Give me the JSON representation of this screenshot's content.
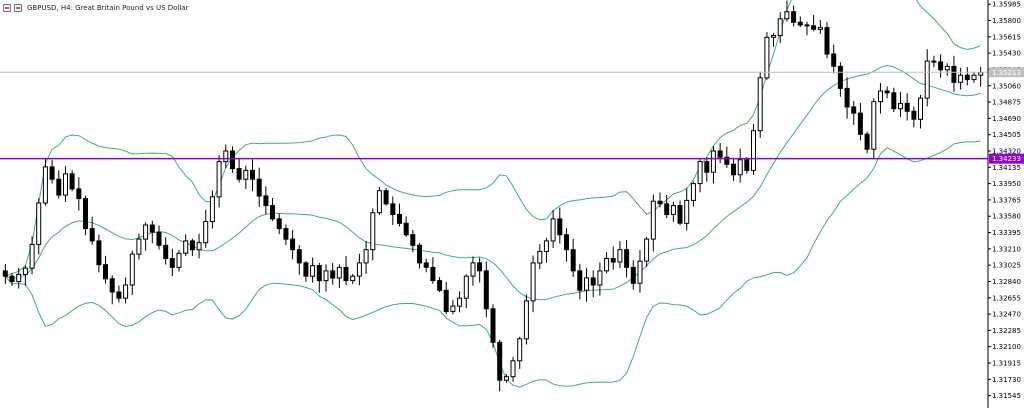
{
  "header": {
    "symbol": "GBPUSD",
    "timeframe": "H4",
    "description": "Great Britain Pound vs US Dollar",
    "title": "GBPUSD, H4:  Great Britain Pound vs US Dollar",
    "icons": [
      "window-icon",
      "window-icon"
    ]
  },
  "colors": {
    "background": "#ffffff",
    "candle": "#000000",
    "bollinger": "#3cb371",
    "level_line": "#9400d3",
    "level_label_bg": "#9400d3",
    "level_label_text": "#ffffff",
    "bid_line": "#c0c0c0",
    "bid_label_bg": "#c0c0c0",
    "axis": "#000000"
  },
  "chart_data": {
    "type": "candlestick",
    "symbol": "GBPUSD",
    "timeframe": "H4",
    "y_range": [
      1.3145,
      1.3601
    ],
    "y_ticks": [
      "1.35985",
      "1.35800",
      "1.35615",
      "1.35430",
      "1.35245",
      "1.35060",
      "1.34875",
      "1.34690",
      "1.34505",
      "1.34320",
      "1.34135",
      "1.33950",
      "1.33765",
      "1.33580",
      "1.33395",
      "1.33210",
      "1.33025",
      "1.32840",
      "1.32655",
      "1.32470",
      "1.32285",
      "1.32100",
      "1.31915",
      "1.31730",
      "1.31545"
    ],
    "horizontal_level": {
      "value": 1.34233,
      "label": "1.34233"
    },
    "current_price": {
      "value": 1.35213,
      "label": "1.35213"
    },
    "indicator": "Bollinger Bands",
    "closes": [
      1.329,
      1.3284,
      1.3292,
      1.3299,
      1.3326,
      1.3373,
      1.3414,
      1.34,
      1.3382,
      1.3406,
      1.3389,
      1.3378,
      1.3344,
      1.333,
      1.3303,
      1.3287,
      1.3272,
      1.3265,
      1.328,
      1.3315,
      1.3332,
      1.3348,
      1.334,
      1.3325,
      1.331,
      1.33,
      1.3316,
      1.333,
      1.332,
      1.3328,
      1.3352,
      1.338,
      1.342,
      1.3432,
      1.3412,
      1.34,
      1.341,
      1.34,
      1.3381,
      1.337,
      1.3355,
      1.3344,
      1.3332,
      1.332,
      1.3305,
      1.329,
      1.3302,
      1.3285,
      1.3296,
      1.3288,
      1.33,
      1.3285,
      1.329,
      1.3305,
      1.332,
      1.3362,
      1.3387,
      1.3372,
      1.336,
      1.335,
      1.3337,
      1.3325,
      1.3305,
      1.33,
      1.3285,
      1.3274,
      1.325,
      1.3256,
      1.3265,
      1.329,
      1.3305,
      1.3296,
      1.3253,
      1.3215,
      1.3172,
      1.3176,
      1.3194,
      1.3219,
      1.3262,
      1.3305,
      1.3318,
      1.333,
      1.3355,
      1.3337,
      1.332,
      1.3296,
      1.3274,
      1.3288,
      1.328,
      1.3296,
      1.331,
      1.3306,
      1.332,
      1.33,
      1.3282,
      1.3307,
      1.3332,
      1.3375,
      1.3372,
      1.336,
      1.337,
      1.335,
      1.3376,
      1.3395,
      1.342,
      1.3408,
      1.3432,
      1.3425,
      1.3417,
      1.3405,
      1.3422,
      1.341,
      1.3455,
      1.3515,
      1.3561,
      1.3563,
      1.3582,
      1.359,
      1.3578,
      1.3575,
      1.3574,
      1.357,
      1.3572,
      1.3542,
      1.3528,
      1.3503,
      1.3482,
      1.3475,
      1.3451,
      1.3434,
      1.3488,
      1.35,
      1.3498,
      1.348,
      1.3486,
      1.3477,
      1.3468,
      1.3492,
      1.3534,
      1.3533,
      1.3524,
      1.3528,
      1.351,
      1.3518,
      1.3513,
      1.3518,
      1.3521
    ]
  }
}
